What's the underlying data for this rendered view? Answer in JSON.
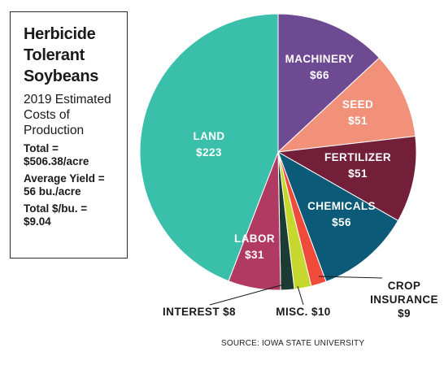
{
  "info_box": {
    "title_lines": [
      "Herbicide",
      "Tolerant",
      "Soybeans"
    ],
    "subtitle_lines": [
      "2019 Estimated",
      "Costs of",
      "Production"
    ],
    "stats": [
      {
        "lines": [
          "Total =",
          "$506.38/acre"
        ]
      },
      {
        "lines": [
          "Average Yield =",
          "56 bu./acre"
        ]
      },
      {
        "lines": [
          "Total $/bu. =",
          " $9.04"
        ]
      }
    ]
  },
  "source": "SOURCE: IOWA STATE UNIVERSITY",
  "chart_data": {
    "type": "pie",
    "title": "Herbicide Tolerant Soybeans",
    "unit": "$/acre",
    "slices": [
      {
        "name": "MACHINERY",
        "label": "$66",
        "value": 66,
        "color": "#6e4a92"
      },
      {
        "name": "SEED",
        "label": "$51",
        "value": 51,
        "color": "#f1917a"
      },
      {
        "name": "FERTILIZER",
        "label": "$51",
        "value": 51,
        "color": "#731f3a"
      },
      {
        "name": "CHEMICALS",
        "label": "$56",
        "value": 56,
        "color": "#0b5a78"
      },
      {
        "name": "CROP INSURANCE",
        "label": "$9",
        "value": 9,
        "color": "#ef4a3a"
      },
      {
        "name": "MISC.",
        "label": "$10",
        "value": 10,
        "color": "#c6d82e"
      },
      {
        "name": "INTEREST",
        "label": "$8",
        "value": 8,
        "color": "#1d3b35"
      },
      {
        "name": "LABOR",
        "label": "$31",
        "value": 31,
        "color": "#b13a63"
      },
      {
        "name": "LAND",
        "label": "$223",
        "value": 223,
        "color": "#39bfaa"
      }
    ]
  }
}
